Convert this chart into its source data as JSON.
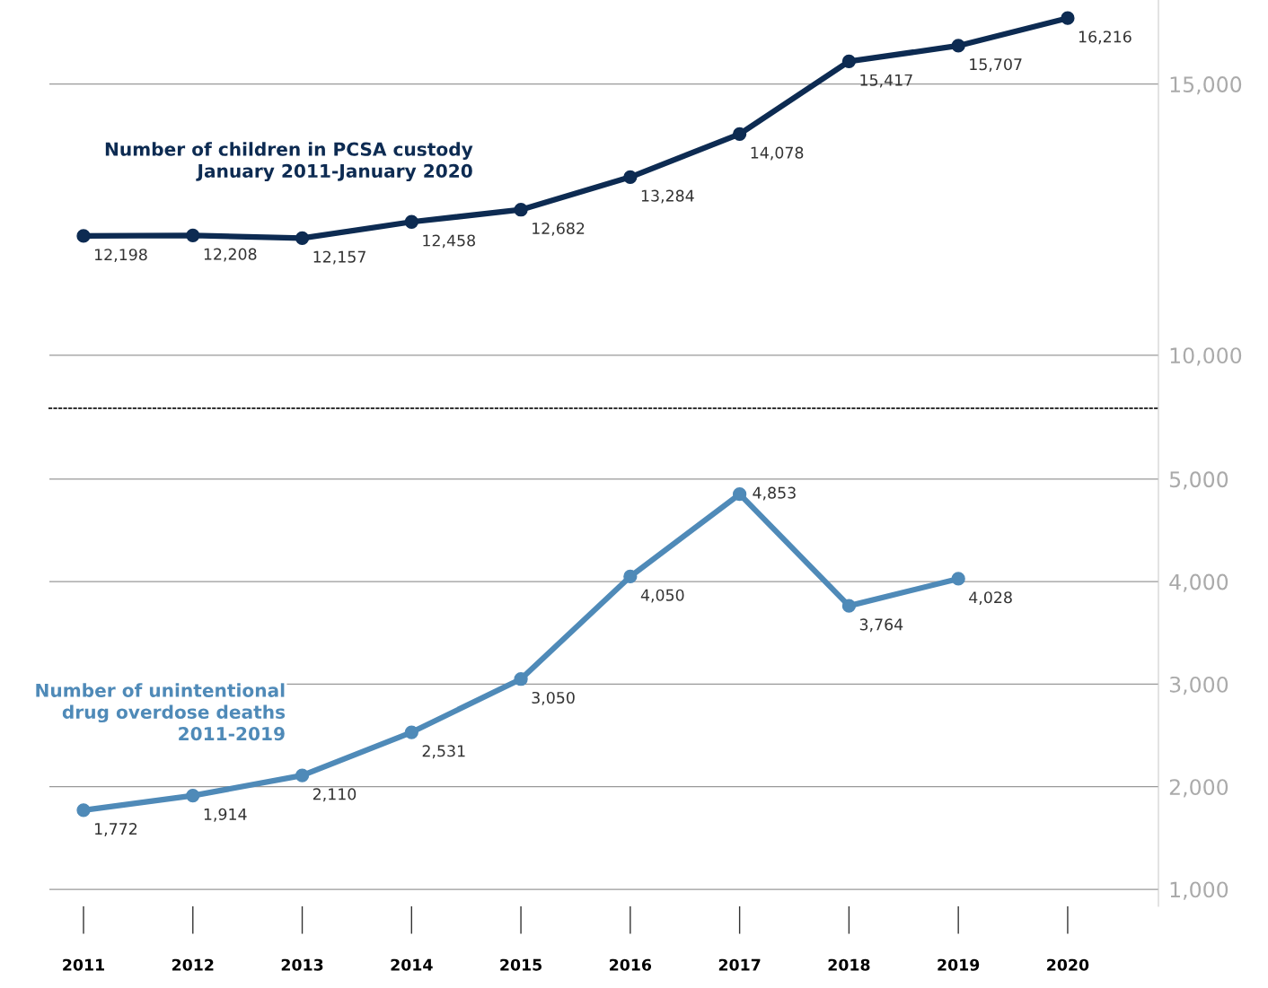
{
  "chart_data": [
    {
      "type": "line",
      "categories": [
        "2011",
        "2012",
        "2013",
        "2014",
        "2015",
        "2016",
        "2017",
        "2018",
        "2019",
        "2020"
      ],
      "series": [
        {
          "name": "Number of children in PCSA custody\nJanuary 2011-January 2020",
          "color": "#0d2b52",
          "values": [
            12198,
            12208,
            12157,
            12458,
            12682,
            13284,
            14078,
            15417,
            15707,
            16216
          ],
          "value_labels": [
            "12,198",
            "12,208",
            "12,157",
            "12,458",
            "12,682",
            "13,284",
            "14,078",
            "15,417",
            "15,707",
            "16,216"
          ]
        }
      ],
      "ylim": [
        9020,
        16550
      ],
      "yticks": [
        {
          "value": 10000,
          "label": "10,000"
        },
        {
          "value": 15000,
          "label": "15,000"
        }
      ],
      "grid": "y",
      "marker": "circle",
      "line_style": "solid",
      "tick_labels": "y"
    },
    {
      "type": "line",
      "categories": [
        "2011",
        "2012",
        "2013",
        "2014",
        "2015",
        "2016",
        "2017",
        "2018",
        "2019",
        "2020"
      ],
      "series": [
        {
          "name": "Number of unintentional\ndrug overdose deaths\n2011-2019",
          "color": "#4f8ab8",
          "values": [
            1772,
            1914,
            2110,
            2531,
            3050,
            4050,
            4853,
            3764,
            4028,
            null
          ],
          "value_labels": [
            "1,772",
            "1,914",
            "2,110",
            "2,531",
            "3,050",
            "4,050",
            "4,853",
            "3,764",
            "4,028",
            null
          ]
        }
      ],
      "ylim": [
        834,
        5690
      ],
      "yticks": [
        {
          "value": 1000,
          "label": "1,000"
        },
        {
          "value": 2000,
          "label": "2,000"
        },
        {
          "value": 3000,
          "label": "3,000"
        },
        {
          "value": 4000,
          "label": "4,000"
        },
        {
          "value": 5000,
          "label": "5,000"
        }
      ],
      "grid": "y",
      "marker": "circle",
      "line_style": "solid"
    }
  ]
}
